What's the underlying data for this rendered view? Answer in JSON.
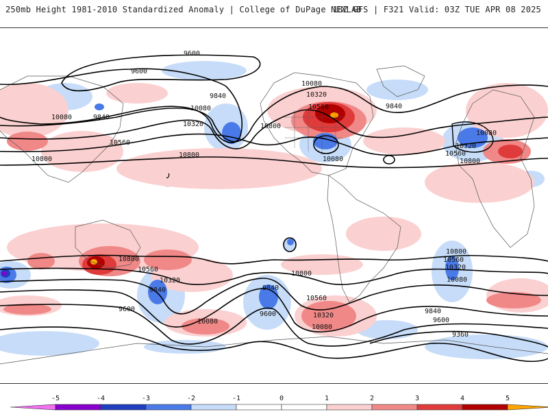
{
  "header": {
    "title": "250mb Height 1981-2010 Standardized Anomaly | College of DuPage NEXLAB",
    "run_info": "18Z GFS | F321 Valid: 03Z TUE APR 08 2025"
  },
  "colors": {
    "neg5": "#f070f0",
    "neg4": "#8800cc",
    "neg3": "#1f3fbf",
    "neg2": "#4a7ae8",
    "neg1": "#c6dcf8",
    "zero": "#ffffff",
    "pos1": "#fbd0d0",
    "pos2": "#f08888",
    "pos3": "#e03b3b",
    "pos4": "#b00000",
    "pos5": "#ffa500"
  },
  "colorbar": {
    "labels": [
      "-5",
      "-4",
      "-3",
      "-2",
      "-1",
      "0",
      "1",
      "2",
      "3",
      "4",
      "5"
    ]
  },
  "contour_labels": [
    {
      "text": "9600"
    },
    {
      "text": "9600"
    },
    {
      "text": "9840"
    },
    {
      "text": "9840"
    },
    {
      "text": "10080"
    },
    {
      "text": "10080"
    },
    {
      "text": "10320"
    },
    {
      "text": "10560"
    },
    {
      "text": "10800"
    },
    {
      "text": "10800"
    },
    {
      "text": "10080"
    },
    {
      "text": "10320"
    },
    {
      "text": "10560"
    },
    {
      "text": "10800"
    },
    {
      "text": "9840"
    },
    {
      "text": "10080"
    },
    {
      "text": "10320"
    },
    {
      "text": "10560"
    },
    {
      "text": "10800"
    },
    {
      "text": "10080"
    },
    {
      "text": "10800"
    },
    {
      "text": "10560"
    },
    {
      "text": "10320"
    },
    {
      "text": "9840"
    },
    {
      "text": "9600"
    },
    {
      "text": "10080"
    },
    {
      "text": "9840"
    },
    {
      "text": "9600"
    },
    {
      "text": "10800"
    },
    {
      "text": "10560"
    },
    {
      "text": "10320"
    },
    {
      "text": "10080"
    },
    {
      "text": "10800"
    },
    {
      "text": "10560"
    },
    {
      "text": "10320"
    },
    {
      "text": "10080"
    },
    {
      "text": "9840"
    },
    {
      "text": "9600"
    },
    {
      "text": "9360"
    }
  ]
}
